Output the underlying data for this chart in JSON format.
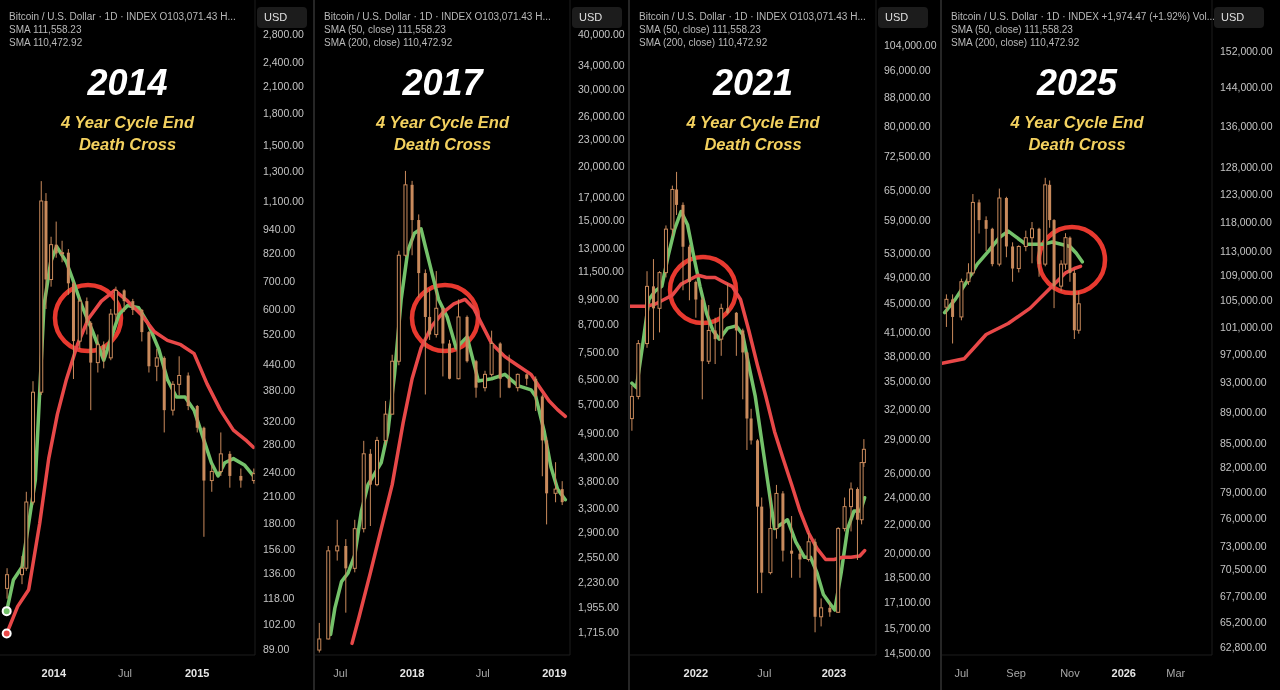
{
  "chart_data": [
    {
      "type": "candlestick",
      "title": "2014",
      "subtitle": "4 Year Cycle End\nDeath Cross",
      "log": true,
      "annotations": [
        "Bitcoin / U.S. Dollar · 1D · INDEX O103,071.43 H...",
        "SMA 111,558.23",
        "SMA 110,472.92",
        "USD"
      ],
      "xlim": [
        "2013-08-17",
        "2015-05-28"
      ],
      "xticks": [
        {
          "value": "2014-01-01",
          "label": "2014"
        },
        {
          "value": "2014-07-01",
          "label": "Jul"
        },
        {
          "value": "2015-01-01",
          "label": "2015"
        }
      ],
      "ylim": [
        86,
        3400
      ],
      "yticks": [
        {
          "value": 2800,
          "label": "2,800.00"
        },
        {
          "value": 2400,
          "label": "2,400.00"
        },
        {
          "value": 2100,
          "label": "2,100.00"
        },
        {
          "value": 1800,
          "label": "1,800.00"
        },
        {
          "value": 1500,
          "label": "1,500.00"
        },
        {
          "value": 1300,
          "label": "1,300.00"
        },
        {
          "value": 1100,
          "label": "1,100.00"
        },
        {
          "value": 940,
          "label": "940.00"
        },
        {
          "value": 820,
          "label": "820.00"
        },
        {
          "value": 700,
          "label": "700.00"
        },
        {
          "value": 600,
          "label": "600.00"
        },
        {
          "value": 520,
          "label": "520.00"
        },
        {
          "value": 440,
          "label": "440.00"
        },
        {
          "value": 380,
          "label": "380.00"
        },
        {
          "value": 320,
          "label": "320.00"
        },
        {
          "value": 280,
          "label": "280.00"
        },
        {
          "value": 240,
          "label": "240.00"
        },
        {
          "value": 210,
          "label": "210.00"
        },
        {
          "value": 180,
          "label": "180.00"
        },
        {
          "value": 156,
          "label": "156.00"
        },
        {
          "value": 136,
          "label": "136.00"
        },
        {
          "value": 118,
          "label": "118.00"
        },
        {
          "value": 102,
          "label": "102.00"
        },
        {
          "value": 89,
          "label": "89.00"
        }
      ],
      "series": [
        {
          "type": "candlestick",
          "color": "#c98a5c",
          "x": [
            "2013-09-04",
            "2013-10-12",
            "2013-10-23",
            "2013-11-09",
            "2013-11-30",
            "2013-12-12",
            "2013-12-25",
            "2014-01-07",
            "2014-01-22",
            "2014-02-07",
            "2014-02-20",
            "2014-03-08",
            "2014-03-26",
            "2014-04-05",
            "2014-04-23",
            "2014-05-08",
            "2014-05-26",
            "2014-06-08",
            "2014-06-29",
            "2014-07-21",
            "2014-08-13",
            "2014-08-31",
            "2014-09-20",
            "2014-10-09",
            "2014-10-31",
            "2014-11-16",
            "2014-12-09",
            "2015-01-01",
            "2015-01-18",
            "2015-02-07",
            "2015-03-02",
            "2015-03-25",
            "2015-04-22",
            "2015-05-25"
          ],
          "ohlc": [
            [
              125,
              140,
              118,
              135
            ],
            [
              135,
              150,
              128,
              140
            ],
            [
              140,
              215,
              138,
              203
            ],
            [
              203,
              400,
              200,
              376
            ],
            [
              376,
              1230,
              370,
              1100
            ],
            [
              1100,
              1150,
              600,
              708
            ],
            [
              708,
              900,
              680,
              861
            ],
            [
              861,
              980,
              800,
              820
            ],
            [
              820,
              880,
              780,
              823
            ],
            [
              823,
              840,
              650,
              693
            ],
            [
              693,
              700,
              405,
              501
            ],
            [
              501,
              640,
              480,
              627
            ],
            [
              627,
              640,
              520,
              555
            ],
            [
              555,
              560,
              340,
              444
            ],
            [
              444,
              520,
              420,
              491
            ],
            [
              491,
              500,
              430,
              456
            ],
            [
              456,
              600,
              450,
              583
            ],
            [
              583,
              680,
              560,
              666
            ],
            [
              666,
              670,
              590,
              627
            ],
            [
              627,
              635,
              580,
              597
            ],
            [
              597,
              600,
              500,
              527
            ],
            [
              527,
              530,
              420,
              435
            ],
            [
              435,
              480,
              400,
              456
            ],
            [
              456,
              460,
              300,
              340
            ],
            [
              340,
              400,
              330,
              393
            ],
            [
              393,
              460,
              370,
              413
            ],
            [
              413,
              420,
              340,
              348
            ],
            [
              348,
              350,
              300,
              308
            ],
            [
              308,
              310,
              167,
              229
            ],
            [
              229,
              250,
              215,
              241
            ],
            [
              241,
              300,
              235,
              266
            ],
            [
              266,
              270,
              220,
              235
            ],
            [
              235,
              245,
              220,
              229
            ],
            [
              229,
              245,
              225,
              238
            ]
          ]
        },
        {
          "type": "line",
          "color": "#74c26a",
          "x": [
            "2013-09-03",
            "2013-09-20",
            "2013-10-12",
            "2013-11-15",
            "2013-12-07",
            "2013-12-24",
            "2014-01-08",
            "2014-02-02",
            "2014-02-18",
            "2014-03-13",
            "2014-04-10",
            "2014-05-08",
            "2014-05-25",
            "2014-06-16",
            "2014-07-08",
            "2014-08-05",
            "2014-08-28",
            "2014-09-25",
            "2014-10-17",
            "2014-11-09",
            "2014-12-01",
            "2014-12-24",
            "2015-01-15",
            "2015-02-06",
            "2015-02-23",
            "2015-03-12",
            "2015-04-03",
            "2015-05-01",
            "2015-05-24"
          ],
          "values": [
            110,
            131,
            141,
            230,
            612,
            781,
            852,
            781,
            709,
            612,
            528,
            450,
            503,
            582,
            612,
            604,
            555,
            479,
            404,
            366,
            366,
            340,
            293,
            253,
            235,
            253,
            259,
            250,
            235
          ]
        },
        {
          "type": "line",
          "color": "#e84848",
          "x": [
            "2013-09-03",
            "2013-10-01",
            "2013-10-29",
            "2013-11-26",
            "2013-12-19",
            "2014-01-10",
            "2014-02-02",
            "2014-03-02",
            "2014-03-30",
            "2014-05-02",
            "2014-06-05",
            "2014-07-08",
            "2014-08-11",
            "2014-09-14",
            "2014-10-17",
            "2014-11-20",
            "2014-12-24",
            "2015-01-26",
            "2015-03-01",
            "2015-04-03",
            "2015-05-07",
            "2015-05-24"
          ],
          "values": [
            97,
            113,
            124,
            180,
            259,
            332,
            404,
            491,
            568,
            627,
            666,
            627,
            582,
            528,
            503,
            491,
            467,
            394,
            340,
            304,
            286,
            276
          ]
        }
      ]
    },
    {
      "type": "candlestick",
      "title": "2017",
      "subtitle": "4 Year Cycle End\nDeath Cross",
      "log": true,
      "annotations": [
        "Bitcoin / U.S. Dollar · 1D · INDEX O103,071.43 H...",
        "SMA (50, close) 111,558.23",
        "SMA (200, close) 110,472.92",
        "USD"
      ],
      "xlim": [
        "2017-04-27",
        "2019-02-10"
      ],
      "xticks": [
        {
          "value": "2017-07-01",
          "label": "Jul"
        },
        {
          "value": "2018-01-01",
          "label": "2018"
        },
        {
          "value": "2018-07-01",
          "label": "Jul"
        },
        {
          "value": "2019-01-01",
          "label": "2019"
        }
      ],
      "ylim": [
        1520,
        48000
      ],
      "yticks": [
        {
          "value": 40000,
          "label": "40,000.00"
        },
        {
          "value": 34000,
          "label": "34,000.00"
        },
        {
          "value": 30000,
          "label": "30,000.00"
        },
        {
          "value": 26000,
          "label": "26,000.00"
        },
        {
          "value": 23000,
          "label": "23,000.00"
        },
        {
          "value": 20000,
          "label": "20,000.00"
        },
        {
          "value": 17000,
          "label": "17,000.00"
        },
        {
          "value": 15000,
          "label": "15,000.00"
        },
        {
          "value": 13000,
          "label": "13,000.00"
        },
        {
          "value": 11500,
          "label": "11,500.00"
        },
        {
          "value": 9900,
          "label": "9,900.00"
        },
        {
          "value": 8700,
          "label": "8,700.00"
        },
        {
          "value": 7500,
          "label": "7,500.00"
        },
        {
          "value": 6500,
          "label": "6,500.00"
        },
        {
          "value": 5700,
          "label": "5,700.00"
        },
        {
          "value": 4900,
          "label": "4,900.00"
        },
        {
          "value": 4300,
          "label": "4,300.00"
        },
        {
          "value": 3800,
          "label": "3,800.00"
        },
        {
          "value": 3300,
          "label": "3,300.00"
        },
        {
          "value": 2900,
          "label": "2,900.00"
        },
        {
          "value": 2550,
          "label": "2,550.00"
        },
        {
          "value": 2230,
          "label": "2,230.00"
        },
        {
          "value": 1955,
          "label": "1,955.00"
        },
        {
          "value": 1715,
          "label": "1,715.00"
        }
      ],
      "series": [
        {
          "type": "candlestick",
          "color": "#c98a5c",
          "x": [
            "2017-05-08",
            "2017-05-31",
            "2017-06-23",
            "2017-07-15",
            "2017-08-07",
            "2017-08-30",
            "2017-09-16",
            "2017-10-03",
            "2017-10-25",
            "2017-11-11",
            "2017-11-28",
            "2017-12-15",
            "2018-01-01",
            "2018-01-18",
            "2018-02-04",
            "2018-02-15",
            "2018-03-04",
            "2018-03-21",
            "2018-04-07",
            "2018-04-30",
            "2018-05-22",
            "2018-06-14",
            "2018-07-07",
            "2018-07-24",
            "2018-08-15",
            "2018-09-07",
            "2018-09-29",
            "2018-10-22",
            "2018-11-14",
            "2018-12-01",
            "2018-12-12",
            "2019-01-04",
            "2019-01-21"
          ],
          "ohlc": [
            [
              1560,
              1800,
              1540,
              1654
            ],
            [
              1654,
              2700,
              1650,
              2632
            ],
            [
              2632,
              3100,
              2500,
              2700
            ],
            [
              2700,
              2800,
              1900,
              2400
            ],
            [
              2400,
              3100,
              2350,
              2958
            ],
            [
              2958,
              4700,
              2900,
              4390
            ],
            [
              4390,
              4500,
              3000,
              3731
            ],
            [
              3731,
              4800,
              3700,
              4710
            ],
            [
              4710,
              5800,
              4600,
              5410
            ],
            [
              5410,
              7400,
              5400,
              7150
            ],
            [
              7150,
              12800,
              7000,
              12500
            ],
            [
              12500,
              19500,
              12400,
              18120
            ],
            [
              18120,
              18500,
              12500,
              15050
            ],
            [
              15050,
              15500,
              10000,
              11380
            ],
            [
              11380,
              11600,
              6000,
              9030
            ],
            [
              9030,
              10500,
              8000,
              8230
            ],
            [
              8230,
              11500,
              8100,
              9452
            ],
            [
              9452,
              9500,
              6600,
              7850
            ],
            [
              7850,
              8000,
              6500,
              6520
            ],
            [
              6520,
              9900,
              6500,
              9030
            ],
            [
              9030,
              9100,
              7100,
              7150
            ],
            [
              7150,
              7200,
              5900,
              6220
            ],
            [
              6220,
              6800,
              6100,
              6672
            ],
            [
              6672,
              8400,
              6600,
              7850
            ],
            [
              7850,
              7900,
              5900,
              6520
            ],
            [
              6520,
              7400,
              6200,
              6220
            ],
            [
              6220,
              6700,
              6100,
              6672
            ],
            [
              6672,
              6700,
              6300,
              6520
            ],
            [
              6520,
              6600,
              5500,
              5940
            ],
            [
              5940,
              6000,
              3900,
              4710
            ],
            [
              4710,
              4800,
              3025,
              3564
            ],
            [
              3564,
              4200,
              3400,
              3644
            ],
            [
              3644,
              3800,
              3350,
              3402
            ]
          ]
        },
        {
          "type": "line",
          "color": "#74c26a",
          "x": [
            "2017-06-06",
            "2017-06-17",
            "2017-07-04",
            "2017-07-21",
            "2017-08-07",
            "2017-08-24",
            "2017-09-10",
            "2017-09-27",
            "2017-10-14",
            "2017-10-31",
            "2017-11-17",
            "2017-12-04",
            "2017-12-21",
            "2018-01-07",
            "2018-01-24",
            "2018-02-04",
            "2018-02-21",
            "2018-03-10",
            "2018-04-01",
            "2018-04-24",
            "2018-05-22",
            "2018-06-20",
            "2018-07-24",
            "2018-08-27",
            "2018-09-29",
            "2018-11-02",
            "2018-11-14",
            "2018-12-06",
            "2018-12-23",
            "2019-01-09",
            "2019-01-29"
          ],
          "values": [
            1693,
            1946,
            2238,
            2343,
            2572,
            3245,
            3731,
            3954,
            4193,
            4930,
            6672,
            9904,
            12790,
            14040,
            14370,
            13090,
            11380,
            9904,
            9030,
            7670,
            8130,
            6445,
            6520,
            6672,
            6290,
            6150,
            5940,
            4930,
            4100,
            3644,
            3445
          ]
        },
        {
          "type": "line",
          "color": "#e84848",
          "x": [
            "2017-07-31",
            "2017-08-18",
            "2017-09-16",
            "2017-10-14",
            "2017-11-11",
            "2017-12-09",
            "2018-01-01",
            "2018-01-24",
            "2018-02-21",
            "2018-03-21",
            "2018-04-18",
            "2018-05-17",
            "2018-06-08",
            "2018-07-01",
            "2018-07-24",
            "2018-08-27",
            "2018-09-29",
            "2018-11-02",
            "2018-11-25",
            "2018-12-18",
            "2019-01-09",
            "2019-01-29"
          ],
          "values": [
            1616,
            1857,
            2343,
            2958,
            3731,
            5166,
            6520,
            7670,
            8615,
            9240,
            9673,
            9904,
            9452,
            8615,
            7850,
            7326,
            6989,
            6672,
            6220,
            5806,
            5541,
            5349
          ]
        }
      ]
    },
    {
      "type": "candlestick",
      "title": "2021",
      "subtitle": "4 Year Cycle End\nDeath Cross",
      "log": true,
      "annotations": [
        "Bitcoin / U.S. Dollar · 1D · INDEX O103,071.43 H...",
        "SMA (50, close) 111,558.23",
        "SMA (200, close) 110,472.92",
        "USD"
      ],
      "xlim": [
        "2021-07-11",
        "2023-04-22"
      ],
      "xticks": [
        {
          "value": "2022-01-01",
          "label": "2022"
        },
        {
          "value": "2022-07-01",
          "label": "Jul"
        },
        {
          "value": "2023-01-01",
          "label": "2023"
        }
      ],
      "ylim": [
        14400,
        120500
      ],
      "yticks": [
        {
          "value": 104000,
          "label": "104,000.00"
        },
        {
          "value": 96000,
          "label": "96,000.00"
        },
        {
          "value": 88000,
          "label": "88,000.00"
        },
        {
          "value": 80000,
          "label": "80,000.00"
        },
        {
          "value": 72500,
          "label": "72,500.00"
        },
        {
          "value": 65000,
          "label": "65,000.00"
        },
        {
          "value": 59000,
          "label": "59,000.00"
        },
        {
          "value": 53000,
          "label": "53,000.00"
        },
        {
          "value": 49000,
          "label": "49,000.00"
        },
        {
          "value": 45000,
          "label": "45,000.00"
        },
        {
          "value": 41000,
          "label": "41,000.00"
        },
        {
          "value": 38000,
          "label": "38,000.00"
        },
        {
          "value": 35000,
          "label": "35,000.00"
        },
        {
          "value": 32000,
          "label": "32,000.00"
        },
        {
          "value": 29000,
          "label": "29,000.00"
        },
        {
          "value": 26000,
          "label": "26,000.00"
        },
        {
          "value": 24000,
          "label": "24,000.00"
        },
        {
          "value": 22000,
          "label": "22,000.00"
        },
        {
          "value": 20000,
          "label": "20,000.00"
        },
        {
          "value": 18500,
          "label": "18,500.00"
        },
        {
          "value": 17100,
          "label": "17,100.00"
        },
        {
          "value": 15700,
          "label": "15,700.00"
        },
        {
          "value": 14500,
          "label": "14,500.00"
        }
      ],
      "series": [
        {
          "type": "candlestick",
          "color": "#c98a5c",
          "x": [
            "2021-07-16",
            "2021-08-02",
            "2021-08-25",
            "2021-09-11",
            "2021-09-27",
            "2021-10-14",
            "2021-10-31",
            "2021-11-11",
            "2021-11-28",
            "2021-12-15",
            "2022-01-01",
            "2022-01-18",
            "2022-02-04",
            "2022-02-21",
            "2022-03-09",
            "2022-03-26",
            "2022-04-18",
            "2022-05-05",
            "2022-05-16",
            "2022-05-27",
            "2022-06-13",
            "2022-06-24",
            "2022-07-17",
            "2022-08-02",
            "2022-08-19",
            "2022-09-11",
            "2022-10-03",
            "2022-10-26",
            "2022-11-12",
            "2022-11-28",
            "2022-12-21",
            "2023-01-12",
            "2023-01-29",
            "2023-02-15",
            "2023-03-04",
            "2023-03-15",
            "2023-03-21"
          ],
          "ohlc": [
            [
              31000,
              34500,
              29800,
              33310
            ],
            [
              33310,
              40000,
              33000,
              39540
            ],
            [
              39540,
              50000,
              39000,
              47600
            ],
            [
              47600,
              52000,
              40000,
              44330
            ],
            [
              44330,
              50000,
              41000,
              49770
            ],
            [
              49770,
              58000,
              49000,
              57310
            ],
            [
              57310,
              66000,
              56000,
              65180
            ],
            [
              65180,
              69000,
              60000,
              62000
            ],
            [
              62000,
              62500,
              47000,
              54130
            ],
            [
              54130,
              54500,
              45500,
              48290
            ],
            [
              48290,
              48500,
              43000,
              45610
            ],
            [
              45610,
              46000,
              33000,
              37340
            ],
            [
              37340,
              44800,
              37000,
              41260
            ],
            [
              41260,
              43000,
              37000,
              40110
            ],
            [
              40110,
              45000,
              38000,
              44330
            ],
            [
              44330,
              48000,
              43500,
              43690
            ],
            [
              43690,
              43800,
              38000,
              41260
            ],
            [
              41260,
              41500,
              33000,
              38420
            ],
            [
              38420,
              38500,
              28000,
              31010
            ],
            [
              31010,
              32000,
              28500,
              28880
            ],
            [
              28880,
              29000,
              17600,
              23300
            ],
            [
              23300,
              24000,
              17600,
              18810
            ],
            [
              18810,
              24300,
              18700,
              21700
            ],
            [
              21700,
              25000,
              21000,
              24320
            ],
            [
              24320,
              24500,
              19500,
              20200
            ],
            [
              20200,
              22600,
              18500,
              20000
            ],
            [
              20000,
              20500,
              18500,
              19630
            ],
            [
              19630,
              21400,
              19500,
              20790
            ],
            [
              20790,
              21000,
              15500,
              16300
            ],
            [
              16300,
              17300,
              15800,
              16780
            ],
            [
              16780,
              17100,
              16300,
              16540
            ],
            [
              16540,
              21800,
              16500,
              21700
            ],
            [
              21700,
              24000,
              21500,
              23300
            ],
            [
              23300,
              25200,
              21500,
              24670
            ],
            [
              24670,
              24800,
              19600,
              22330
            ],
            [
              22330,
              26900,
              22000,
              26880
            ],
            [
              26880,
              29000,
              26500,
              28060
            ]
          ]
        },
        {
          "type": "line",
          "color": "#74c26a",
          "x": [
            "2021-07-16",
            "2021-07-28",
            "2021-08-14",
            "2021-08-30",
            "2021-09-16",
            "2021-10-03",
            "2021-10-20",
            "2021-11-06",
            "2021-11-23",
            "2021-12-10",
            "2021-12-26",
            "2022-01-12",
            "2022-01-29",
            "2022-02-15",
            "2022-03-04",
            "2022-03-26",
            "2022-04-18",
            "2022-05-05",
            "2022-05-21",
            "2022-06-07",
            "2022-06-24",
            "2022-07-11",
            "2022-07-28",
            "2022-08-14",
            "2022-08-31",
            "2022-09-22",
            "2022-10-15",
            "2022-10-31",
            "2022-11-17",
            "2022-12-04",
            "2022-12-21",
            "2023-01-03",
            "2023-01-20",
            "2023-02-06",
            "2023-02-23",
            "2023-03-12",
            "2023-03-23"
          ],
          "values": [
            34770,
            34280,
            39540,
            45610,
            46930,
            47600,
            52610,
            57310,
            60690,
            58140,
            52610,
            47600,
            43690,
            41260,
            40110,
            41570,
            41870,
            40680,
            36810,
            33310,
            28880,
            25030,
            21700,
            22010,
            22330,
            20790,
            19770,
            19770,
            18810,
            17520,
            17020,
            16660,
            18810,
            21700,
            22980,
            22980,
            23980
          ]
        },
        {
          "type": "line",
          "color": "#e84848",
          "x": [
            "2021-07-11",
            "2021-08-02",
            "2021-08-25",
            "2021-09-16",
            "2021-10-09",
            "2021-10-31",
            "2021-11-23",
            "2021-12-15",
            "2022-01-07",
            "2022-01-29",
            "2022-02-21",
            "2022-03-15",
            "2022-04-07",
            "2022-04-29",
            "2022-05-21",
            "2022-06-13",
            "2022-07-05",
            "2022-07-28",
            "2022-08-19",
            "2022-09-11",
            "2022-10-03",
            "2022-10-26",
            "2022-11-17",
            "2022-12-10",
            "2023-01-01",
            "2023-01-24",
            "2023-02-15",
            "2023-03-10",
            "2023-03-23"
          ],
          "values": [
            44640,
            44640,
            44640,
            44960,
            45610,
            46270,
            47950,
            48640,
            49340,
            48980,
            48980,
            48290,
            47600,
            45610,
            41260,
            36810,
            33310,
            29710,
            27280,
            25030,
            22980,
            21390,
            20350,
            19630,
            19630,
            19770,
            19770,
            19850,
            20200
          ]
        }
      ]
    },
    {
      "type": "candlestick",
      "title": "2025",
      "subtitle": "4 Year Cycle End\nDeath Cross",
      "log": true,
      "annotations": [
        "Bitcoin / U.S. Dollar · 1D · INDEX +1,974.47 (+1.92%) Vol...",
        "SMA (50, close) 111,558.23",
        "SMA (200, close) 110,472.92",
        "USD"
      ],
      "xlim": [
        "2025-06-09",
        "2026-04-11"
      ],
      "xticks": [
        {
          "value": "2025-07-01",
          "label": "Jul"
        },
        {
          "value": "2025-09-01",
          "label": "Sep"
        },
        {
          "value": "2025-11-01",
          "label": "Nov"
        },
        {
          "value": "2026-01-01",
          "label": "2026"
        },
        {
          "value": "2026-03-01",
          "label": "Mar"
        }
      ],
      "ylim": [
        62100,
        164000
      ],
      "yticks": [
        {
          "value": 152000,
          "label": "152,000.00"
        },
        {
          "value": 144000,
          "label": "144,000.00"
        },
        {
          "value": 136000,
          "label": "136,000.00"
        },
        {
          "value": 128000,
          "label": "128,000.00"
        },
        {
          "value": 123000,
          "label": "123,000.00"
        },
        {
          "value": 118000,
          "label": "118,000.00"
        },
        {
          "value": 113000,
          "label": "113,000.00"
        },
        {
          "value": 109000,
          "label": "109,000.00"
        },
        {
          "value": 105000,
          "label": "105,000.00"
        },
        {
          "value": 101000,
          "label": "101,000.00"
        },
        {
          "value": 97000,
          "label": "97,000.00"
        },
        {
          "value": 93000,
          "label": "93,000.00"
        },
        {
          "value": 89000,
          "label": "89,000.00"
        },
        {
          "value": 85000,
          "label": "85,000.00"
        },
        {
          "value": 82000,
          "label": "82,000.00"
        },
        {
          "value": 79000,
          "label": "79,000.00"
        },
        {
          "value": 76000,
          "label": "76,000.00"
        },
        {
          "value": 73000,
          "label": "73,000.00"
        },
        {
          "value": 70500,
          "label": "70,500.00"
        },
        {
          "value": 67700,
          "label": "67,700.00"
        },
        {
          "value": 65200,
          "label": "65,200.00"
        },
        {
          "value": 62800,
          "label": "62,800.00"
        }
      ],
      "series": [
        {
          "type": "candlestick",
          "color": "#c98a5c",
          "x": [
            "2025-06-14",
            "2025-06-21",
            "2025-07-01",
            "2025-07-09",
            "2025-07-14",
            "2025-07-21",
            "2025-07-29",
            "2025-08-05",
            "2025-08-13",
            "2025-08-21",
            "2025-08-28",
            "2025-09-04",
            "2025-09-12",
            "2025-09-19",
            "2025-09-27",
            "2025-10-04",
            "2025-10-09",
            "2025-10-14",
            "2025-10-22",
            "2025-10-27",
            "2025-11-01",
            "2025-11-06",
            "2025-11-11"
          ],
          "ohlc": [
            [
              104000,
              106000,
              101000,
              105220
            ],
            [
              105220,
              106000,
              98550,
              102510
            ],
            [
              102510,
              108500,
              102000,
              108010
            ],
            [
              108010,
              111000,
              107500,
              109430
            ],
            [
              109430,
              123000,
              109000,
              121480
            ],
            [
              121480,
              122000,
              116000,
              118340
            ],
            [
              118340,
              119000,
              113000,
              116820
            ],
            [
              116820,
              117000,
              110500,
              110860
            ],
            [
              110860,
              124000,
              110500,
              122280
            ],
            [
              122280,
              122500,
              112000,
              113800
            ],
            [
              113800,
              114500,
              108000,
              110140
            ],
            [
              110140,
              114000,
              109500,
              113800
            ],
            [
              113800,
              116500,
              113000,
              115290
            ],
            [
              115290,
              118000,
              111000,
              116820
            ],
            [
              116820,
              117000,
              108800,
              110860
            ],
            [
              110860,
              126000,
              110500,
              124690
            ],
            [
              124690,
              125500,
              117000,
              118340
            ],
            [
              118340,
              118500,
              103860,
              107300
            ],
            [
              107300,
              111500,
              106500,
              110860
            ],
            [
              110860,
              116060,
              110000,
              115290
            ],
            [
              115290,
              115500,
              108000,
              109430
            ],
            [
              109430,
              110000,
              99210,
              100510
            ],
            [
              100510,
              106500,
              100000,
              104530
            ]
          ]
        },
        {
          "type": "line",
          "color": "#74c26a",
          "x": [
            "2025-06-12",
            "2025-06-24",
            "2025-07-07",
            "2025-07-19",
            "2025-08-01",
            "2025-08-13",
            "2025-08-23",
            "2025-09-02",
            "2025-09-12",
            "2025-09-22",
            "2025-10-02",
            "2025-10-12",
            "2025-10-22",
            "2025-11-01",
            "2025-11-08",
            "2025-11-15"
          ],
          "values": [
            103180,
            105220,
            108010,
            110860,
            113060,
            115290,
            116420,
            115290,
            114180,
            114180,
            114180,
            114550,
            114180,
            113800,
            112700,
            111240
          ]
        },
        {
          "type": "line",
          "color": "#e84848",
          "x": [
            "2025-06-09",
            "2025-07-04",
            "2025-07-29",
            "2025-08-23",
            "2025-09-17",
            "2025-10-07",
            "2025-10-17",
            "2025-10-27",
            "2025-11-06",
            "2025-11-13"
          ],
          "values": [
            95700,
            96340,
            99870,
            101510,
            103860,
            106600,
            108010,
            109430,
            110140,
            110500
          ]
        }
      ]
    }
  ]
}
